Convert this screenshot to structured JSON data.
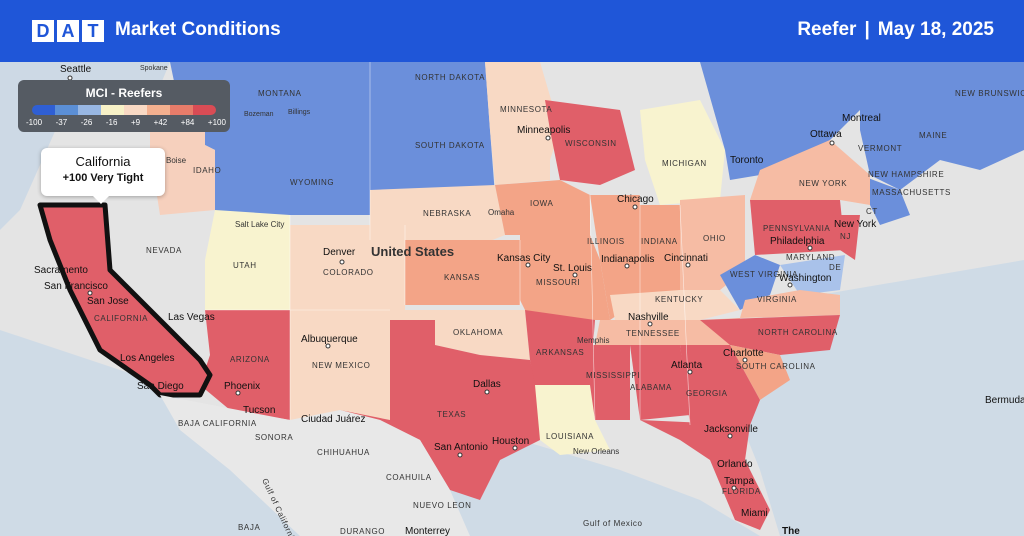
{
  "header": {
    "logo_letters": [
      "D",
      "A",
      "T"
    ],
    "title": "Market Conditions",
    "equipment": "Reefer",
    "separator": "|",
    "date": "May 18, 2025"
  },
  "legend": {
    "title": "MCI - Reefers",
    "ticks": [
      "-100",
      "-37",
      "-26",
      "-16",
      "+9",
      "+42",
      "+84",
      "+100"
    ],
    "colors": [
      "#2f5fd4",
      "#5b8fd6",
      "#98b7e3",
      "#f7f1c7",
      "#f8d9c4",
      "#f3b08f",
      "#e77c6a",
      "#d94c55"
    ]
  },
  "tooltip": {
    "name": "California",
    "value": "+100 Very Tight"
  },
  "map": {
    "country_label": "United States",
    "colors": {
      "blue": "#6b8fdb",
      "light_blue": "#a9c2ea",
      "pale_yellow": "#f8f3cf",
      "peach": "#f9d3bd",
      "salmon": "#f3a487",
      "light_salmon": "#f6bca4",
      "red": "#e05f69",
      "water": "#c9d6e3",
      "land": "#e6e6e6"
    },
    "states": [
      "NORTH DAKOTA",
      "MONTANA",
      "MINNESOTA",
      "SOUTH DAKOTA",
      "WISCONSIN",
      "MICHIGAN",
      "WYOMING",
      "IDAHO",
      "NEBRASKA",
      "IOWA",
      "NEVADA",
      "UTAH",
      "COLORADO",
      "KANSAS",
      "MISSOURI",
      "ILLINOIS",
      "INDIANA",
      "OHIO",
      "PENNSYLVANIA",
      "NEW YORK",
      "CALIFORNIA",
      "ARIZONA",
      "NEW MEXICO",
      "OKLAHOMA",
      "TEXAS",
      "ARKANSAS",
      "LOUISIANA",
      "MISSISSIPPI",
      "ALABAMA",
      "GEORGIA",
      "TENNESSEE",
      "KENTUCKY",
      "WEST VIRGINIA",
      "VIRGINIA",
      "NORTH CAROLINA",
      "SOUTH CAROLINA",
      "FLORIDA",
      "MARYLAND",
      "DE",
      "NJ",
      "CT",
      "VERMONT",
      "NEW HAMPSHIRE",
      "MAINE",
      "MASSACHUSETTS",
      "NEW BRUNSWICK",
      "BAJA CALIFORNIA",
      "SONORA",
      "CHIHUAHUA",
      "COAHUILA",
      "NUEVO LEON",
      "DURANGO",
      "BAJA",
      "Gulf of California",
      "Gulf of Mexico",
      "Bermuda",
      "The"
    ],
    "cities": [
      "Seattle",
      "Spokane",
      "Bozeman",
      "Billings",
      "Boise",
      "Minneapolis",
      "Chicago",
      "Toronto",
      "Ottawa",
      "Montreal",
      "Omaha",
      "Salt Lake City",
      "Denver",
      "Kansas City",
      "St. Louis",
      "Indianapolis",
      "Cincinnati",
      "Philadelphia",
      "New York",
      "Washington",
      "Nashville",
      "Memphis",
      "Atlanta",
      "Charlotte",
      "Sacramento",
      "San Francisco",
      "San Jose",
      "Las Vegas",
      "Los Angeles",
      "San Diego",
      "Phoenix",
      "Tucson",
      "Albuquerque",
      "Ciudad Juárez",
      "Dallas",
      "Houston",
      "San Antonio",
      "New Orleans",
      "Jacksonville",
      "Orlando",
      "Tampa",
      "Miami",
      "Monterrey"
    ]
  }
}
